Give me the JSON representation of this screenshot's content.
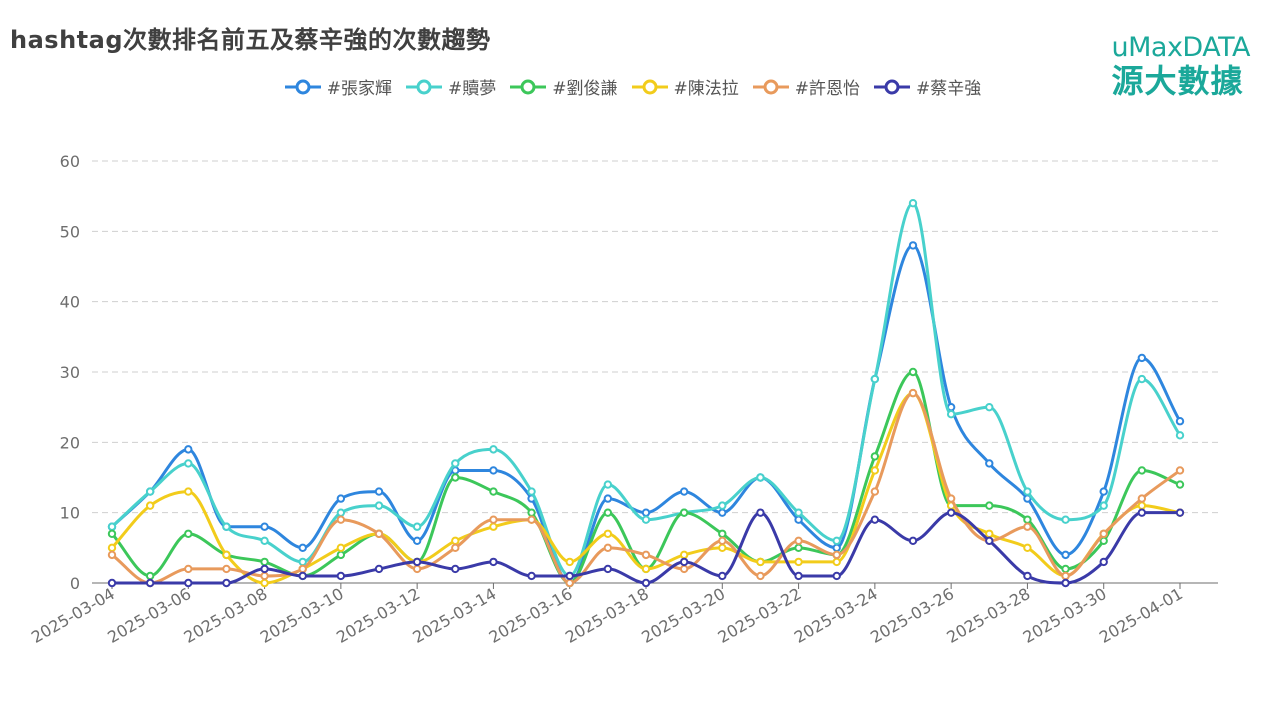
{
  "title": "hashtag次數排名前五及蔡辛強的次數趨勢",
  "brand": {
    "en": "uMaxDATA",
    "zh": "源大數據"
  },
  "chart_data": {
    "type": "line",
    "smooth": true,
    "x": [
      "2025-03-04",
      "2025-03-05",
      "2025-03-06",
      "2025-03-07",
      "2025-03-08",
      "2025-03-09",
      "2025-03-10",
      "2025-03-11",
      "2025-03-12",
      "2025-03-13",
      "2025-03-14",
      "2025-03-15",
      "2025-03-16",
      "2025-03-17",
      "2025-03-18",
      "2025-03-19",
      "2025-03-20",
      "2025-03-21",
      "2025-03-22",
      "2025-03-23",
      "2025-03-24",
      "2025-03-25",
      "2025-03-26",
      "2025-03-27",
      "2025-03-28",
      "2025-03-29",
      "2025-03-30",
      "2025-03-31",
      "2025-04-01"
    ],
    "x_tick_labels": [
      "2025-03-04",
      "2025-03-06",
      "2025-03-08",
      "2025-03-10",
      "2025-03-12",
      "2025-03-14",
      "2025-03-16",
      "2025-03-18",
      "2025-03-20",
      "2025-03-22",
      "2025-03-24",
      "2025-03-26",
      "2025-03-28",
      "2025-03-30",
      "2025-04-01"
    ],
    "ylim": [
      0,
      60
    ],
    "y_ticks": [
      0,
      10,
      20,
      30,
      40,
      50,
      60
    ],
    "grid": "horizontal dashed",
    "legend_position": "top",
    "series": [
      {
        "name": "#張家輝",
        "color": "#2e86de",
        "values": [
          8,
          13,
          19,
          8,
          8,
          5,
          12,
          13,
          6,
          16,
          16,
          12,
          0,
          12,
          10,
          13,
          10,
          15,
          9,
          5,
          29,
          48,
          25,
          17,
          12,
          4,
          13,
          32,
          23
        ]
      },
      {
        "name": "#贖夢",
        "color": "#48d1cc",
        "values": [
          8,
          13,
          17,
          8,
          6,
          3,
          10,
          11,
          8,
          17,
          19,
          13,
          1,
          14,
          9,
          10,
          11,
          15,
          10,
          6,
          29,
          54,
          24,
          25,
          13,
          9,
          11,
          29,
          21
        ]
      },
      {
        "name": "#劉俊謙",
        "color": "#3cc75a",
        "values": [
          7,
          1,
          7,
          4,
          3,
          1,
          4,
          7,
          3,
          15,
          13,
          10,
          0,
          10,
          2,
          10,
          7,
          3,
          5,
          4,
          18,
          30,
          11,
          11,
          9,
          2,
          6,
          16,
          14
        ]
      },
      {
        "name": "#陳法拉",
        "color": "#f2cc1b",
        "values": [
          5,
          11,
          13,
          4,
          0,
          2,
          5,
          7,
          3,
          6,
          8,
          9,
          3,
          7,
          2,
          4,
          5,
          3,
          3,
          3,
          16,
          27,
          11,
          7,
          5,
          1,
          7,
          11,
          10
        ]
      },
      {
        "name": "#許恩怡",
        "color": "#e89a5c",
        "values": [
          4,
          0,
          2,
          2,
          1,
          2,
          9,
          7,
          2,
          5,
          9,
          9,
          0,
          5,
          4,
          2,
          6,
          1,
          6,
          4,
          13,
          27,
          12,
          6,
          8,
          1,
          7,
          12,
          16
        ]
      },
      {
        "name": "#蔡辛強",
        "color": "#3a3aa8",
        "values": [
          0,
          0,
          0,
          0,
          2,
          1,
          1,
          2,
          3,
          2,
          3,
          1,
          1,
          2,
          0,
          3,
          1,
          10,
          1,
          1,
          9,
          6,
          10,
          6,
          1,
          0,
          3,
          10,
          10
        ]
      }
    ]
  }
}
